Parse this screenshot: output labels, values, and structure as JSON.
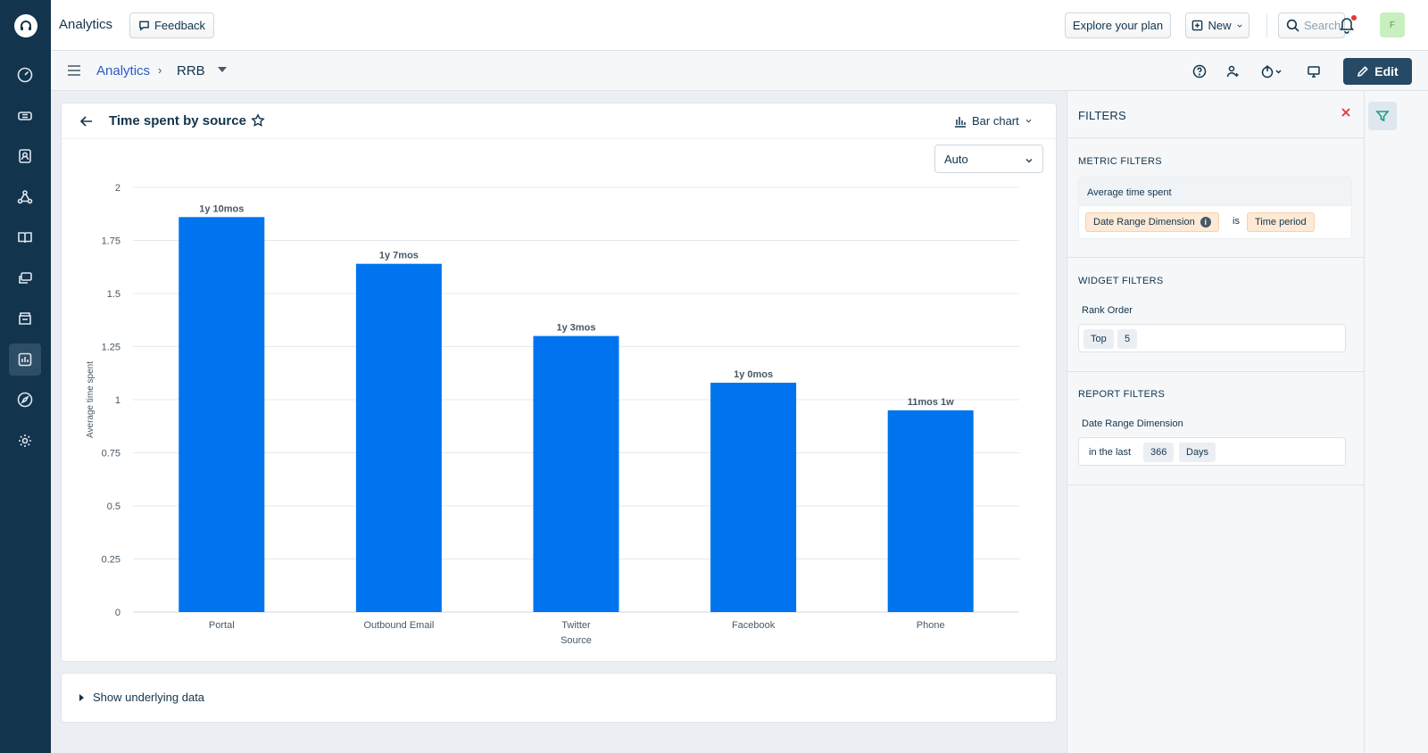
{
  "app": {
    "title": "Analytics"
  },
  "topbar": {
    "feedback_label": "Feedback",
    "explore_label": "Explore your plan",
    "new_label": "New",
    "search_placeholder": "Search",
    "avatar_initial": "F"
  },
  "breadcrumb": {
    "parent": "Analytics",
    "separator": "›",
    "current": "RRB"
  },
  "toolbar": {
    "edit_label": "Edit"
  },
  "widget": {
    "title": "Time spent by source",
    "chart_type_label": "Bar chart",
    "scale_select": "Auto",
    "show_data_label": "Show underlying data"
  },
  "chart_data": {
    "type": "bar",
    "categories": [
      "Portal",
      "Outbound Email",
      "Twitter",
      "Facebook",
      "Phone"
    ],
    "values": [
      1.86,
      1.64,
      1.3,
      1.08,
      0.95
    ],
    "data_labels": [
      "1y 10mos",
      "1y 7mos",
      "1y 3mos",
      "1y 0mos",
      "11mos 1w"
    ],
    "xlabel": "Source",
    "ylabel": "Average time spent",
    "ylim": [
      0,
      2
    ],
    "yticks": [
      "0",
      "0.25",
      "0.5",
      "0.75",
      "1",
      "1.25",
      "1.5",
      "1.75",
      "2"
    ],
    "color": "#0074ee",
    "grid": true
  },
  "filters": {
    "title": "FILTERS",
    "metric": {
      "section_title": "METRIC FILTERS",
      "metric_name": "Average time spent",
      "dimension": "Date Range Dimension",
      "operator": "is",
      "value": "Time period"
    },
    "widget": {
      "section_title": "WIDGET FILTERS",
      "label": "Rank Order",
      "order": "Top",
      "count": "5"
    },
    "report": {
      "section_title": "REPORT FILTERS",
      "label": "Date Range Dimension",
      "qualifier": "in the last",
      "amount": "366",
      "unit": "Days"
    }
  },
  "colors": {
    "rail": "#12344d",
    "accent": "#0074ee",
    "link": "#2c5cc5",
    "edit": "#264966",
    "close": "#e43538"
  },
  "icons": {
    "rail": [
      "dashboard-icon",
      "tickets-icon",
      "contacts-icon",
      "groups-icon",
      "solutions-icon",
      "forums-icon",
      "admin-icon",
      "analytics-icon",
      "discover-icon",
      "settings-icon"
    ]
  }
}
